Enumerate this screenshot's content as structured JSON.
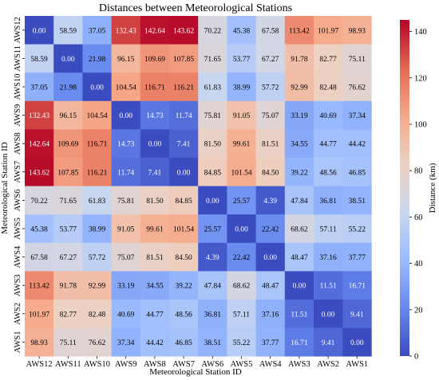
{
  "chart_data": {
    "type": "heatmap",
    "title": "Distances between Meteorological Stations",
    "xlabel": "Meteorological Station ID",
    "ylabel": "Meteorological Station ID",
    "colorbar_label": "Distance (km)",
    "colorbar_range": [
      0,
      145
    ],
    "colorbar_ticks": [
      0,
      20,
      40,
      60,
      80,
      100,
      120,
      140
    ],
    "colormap": "coolwarm",
    "colormap_stops": [
      "#3b4cc0",
      "#6788ee",
      "#9abbff",
      "#c9d7f0",
      "#edd1c2",
      "#f7a889",
      "#e26952",
      "#b40426"
    ],
    "columns": [
      "AWS12",
      "AWS11",
      "AWS10",
      "AWS9",
      "AWS8",
      "AWS7",
      "AWS6",
      "AWS5",
      "AWS4",
      "AWS3",
      "AWS2",
      "AWS1"
    ],
    "rows": [
      "AWS12",
      "AWS11",
      "AWS10",
      "AWS9",
      "AWS8",
      "AWS7",
      "AWS6",
      "AWS5",
      "AWS4",
      "AWS3",
      "AWS2",
      "AWS1"
    ],
    "values": [
      [
        0.0,
        58.59,
        37.05,
        132.43,
        142.64,
        143.62,
        70.22,
        45.38,
        67.58,
        113.42,
        101.97,
        98.93
      ],
      [
        58.59,
        0.0,
        21.98,
        96.15,
        109.69,
        107.85,
        71.65,
        53.77,
        67.27,
        91.78,
        82.77,
        75.11
      ],
      [
        37.05,
        21.98,
        0.0,
        104.54,
        116.71,
        116.21,
        61.83,
        38.99,
        57.72,
        92.99,
        82.48,
        76.62
      ],
      [
        132.43,
        96.15,
        104.54,
        0.0,
        14.73,
        11.74,
        75.81,
        91.05,
        75.07,
        33.19,
        40.69,
        37.34
      ],
      [
        142.64,
        109.69,
        116.71,
        14.73,
        0.0,
        7.41,
        81.5,
        99.61,
        81.51,
        34.55,
        44.77,
        44.42
      ],
      [
        143.62,
        107.85,
        116.21,
        11.74,
        7.41,
        0.0,
        84.85,
        101.54,
        84.5,
        39.22,
        48.56,
        46.85
      ],
      [
        70.22,
        71.65,
        61.83,
        75.81,
        81.5,
        84.85,
        0.0,
        25.57,
        4.39,
        47.84,
        36.81,
        38.51
      ],
      [
        45.38,
        53.77,
        38.99,
        91.05,
        99.61,
        101.54,
        25.57,
        0.0,
        22.42,
        68.62,
        57.11,
        55.22
      ],
      [
        67.58,
        67.27,
        57.72,
        75.07,
        81.51,
        84.5,
        4.39,
        22.42,
        0.0,
        48.47,
        37.16,
        37.77
      ],
      [
        113.42,
        91.78,
        92.99,
        33.19,
        34.55,
        39.22,
        47.84,
        68.62,
        48.47,
        0.0,
        11.51,
        16.71
      ],
      [
        101.97,
        82.77,
        82.48,
        40.69,
        44.77,
        48.56,
        36.81,
        57.11,
        37.16,
        11.51,
        0.0,
        9.41
      ],
      [
        98.93,
        75.11,
        76.62,
        37.34,
        44.42,
        46.85,
        38.51,
        55.22,
        37.77,
        16.71,
        9.41,
        0.0
      ]
    ]
  }
}
